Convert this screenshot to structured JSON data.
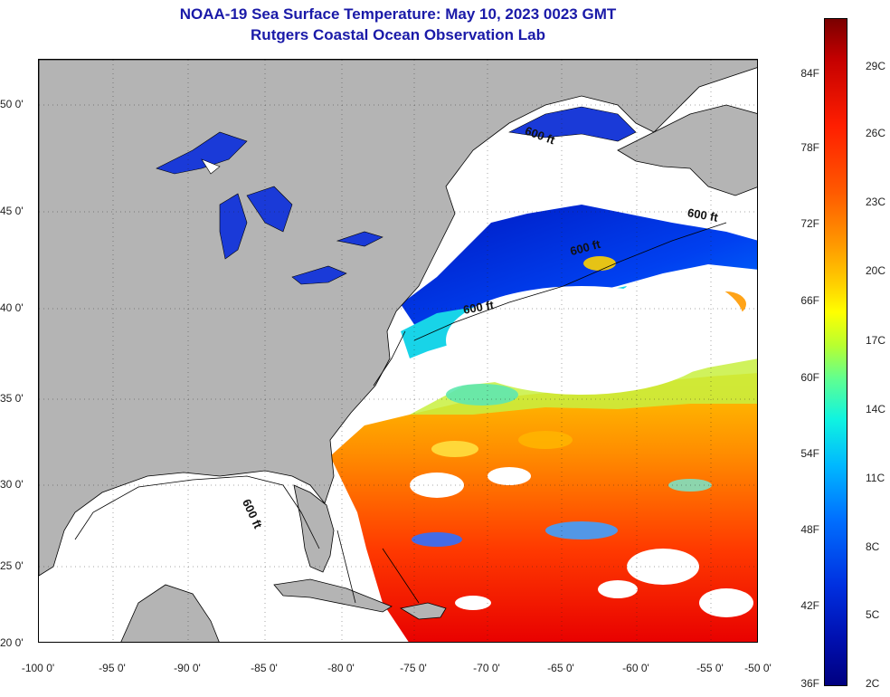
{
  "title": {
    "line1": "NOAA-19 Sea Surface Temperature:  May 10, 2023 0023 GMT",
    "line2": "Rutgers Coastal Ocean Observation Lab"
  },
  "map": {
    "lat_labels": [
      "50 0'",
      "45 0'",
      "40 0'",
      "35 0'",
      "30 0'",
      "25 0'",
      "20 0'"
    ],
    "lon_labels": [
      "-100 0'",
      "-95 0'",
      "-90 0'",
      "-85 0'",
      "-80 0'",
      "-75 0'",
      "-70 0'",
      "-65 0'",
      "-60 0'",
      "-55 0'",
      "-50 0'"
    ],
    "depth_contour_label": "600 ft",
    "colors": {
      "land": "#b4b4b4",
      "cloud": "#ffffff",
      "coast": "#000000"
    }
  },
  "colorbar": {
    "fahrenheit": [
      "84F",
      "78F",
      "72F",
      "66F",
      "60F",
      "54F",
      "48F",
      "42F",
      "36F"
    ],
    "celsius": [
      "29C",
      "26C",
      "23C",
      "20C",
      "17C",
      "14C",
      "11C",
      "8C",
      "5C",
      "2C"
    ]
  }
}
